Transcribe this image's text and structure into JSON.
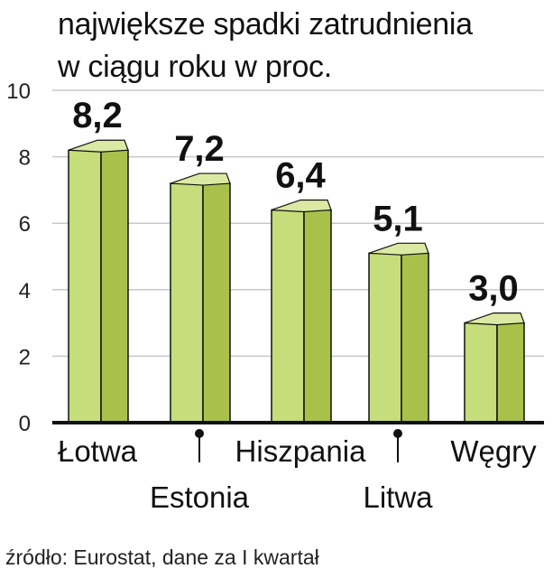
{
  "chart_data": {
    "type": "bar",
    "title_lines": [
      "największe spadki zatrudnienia",
      "w ciągu roku w proc."
    ],
    "categories": [
      "Łotwa",
      "Estonia",
      "Hiszpania",
      "Litwa",
      "Węgry"
    ],
    "values": [
      8.2,
      7.2,
      6.4,
      5.1,
      3.0
    ],
    "value_labels": [
      "8,2",
      "7,2",
      "6,4",
      "5,1",
      "3,0"
    ],
    "y_ticks": [
      "0",
      "2",
      "4",
      "6",
      "8",
      "10"
    ],
    "ylim": [
      0,
      10
    ],
    "grid": true,
    "colors": {
      "bar_front": "#c6dd7b",
      "bar_side": "#a9c14a",
      "bar_top": "#dbe9a3",
      "grid": "#c8c8c8",
      "axis": "#111111"
    },
    "source": "źródło: Eurostat, dane za I kwartał"
  }
}
